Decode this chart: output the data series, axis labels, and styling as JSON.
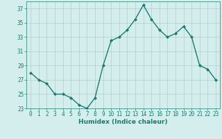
{
  "x": [
    0,
    1,
    2,
    3,
    4,
    5,
    6,
    7,
    8,
    9,
    10,
    11,
    12,
    13,
    14,
    15,
    16,
    17,
    18,
    19,
    20,
    21,
    22,
    23
  ],
  "y": [
    28,
    27,
    26.5,
    25,
    25,
    24.5,
    23.5,
    23,
    24.5,
    29,
    32.5,
    33,
    34,
    35.5,
    37.5,
    35.5,
    34,
    33,
    33.5,
    34.5,
    33,
    29,
    28.5,
    27
  ],
  "xlabel": "Humidex (Indice chaleur)",
  "ylim": [
    23,
    38
  ],
  "xlim": [
    -0.5,
    23.5
  ],
  "yticks": [
    23,
    25,
    27,
    29,
    31,
    33,
    35,
    37
  ],
  "xticks": [
    0,
    1,
    2,
    3,
    4,
    5,
    6,
    7,
    8,
    9,
    10,
    11,
    12,
    13,
    14,
    15,
    16,
    17,
    18,
    19,
    20,
    21,
    22,
    23
  ],
  "line_color": "#1a7a6e",
  "marker": "D",
  "marker_size": 2.0,
  "bg_color": "#d4eeee",
  "grid_color": "#b2cccc",
  "line_width": 1.0,
  "tick_fontsize": 5.5,
  "xlabel_fontsize": 6.5
}
